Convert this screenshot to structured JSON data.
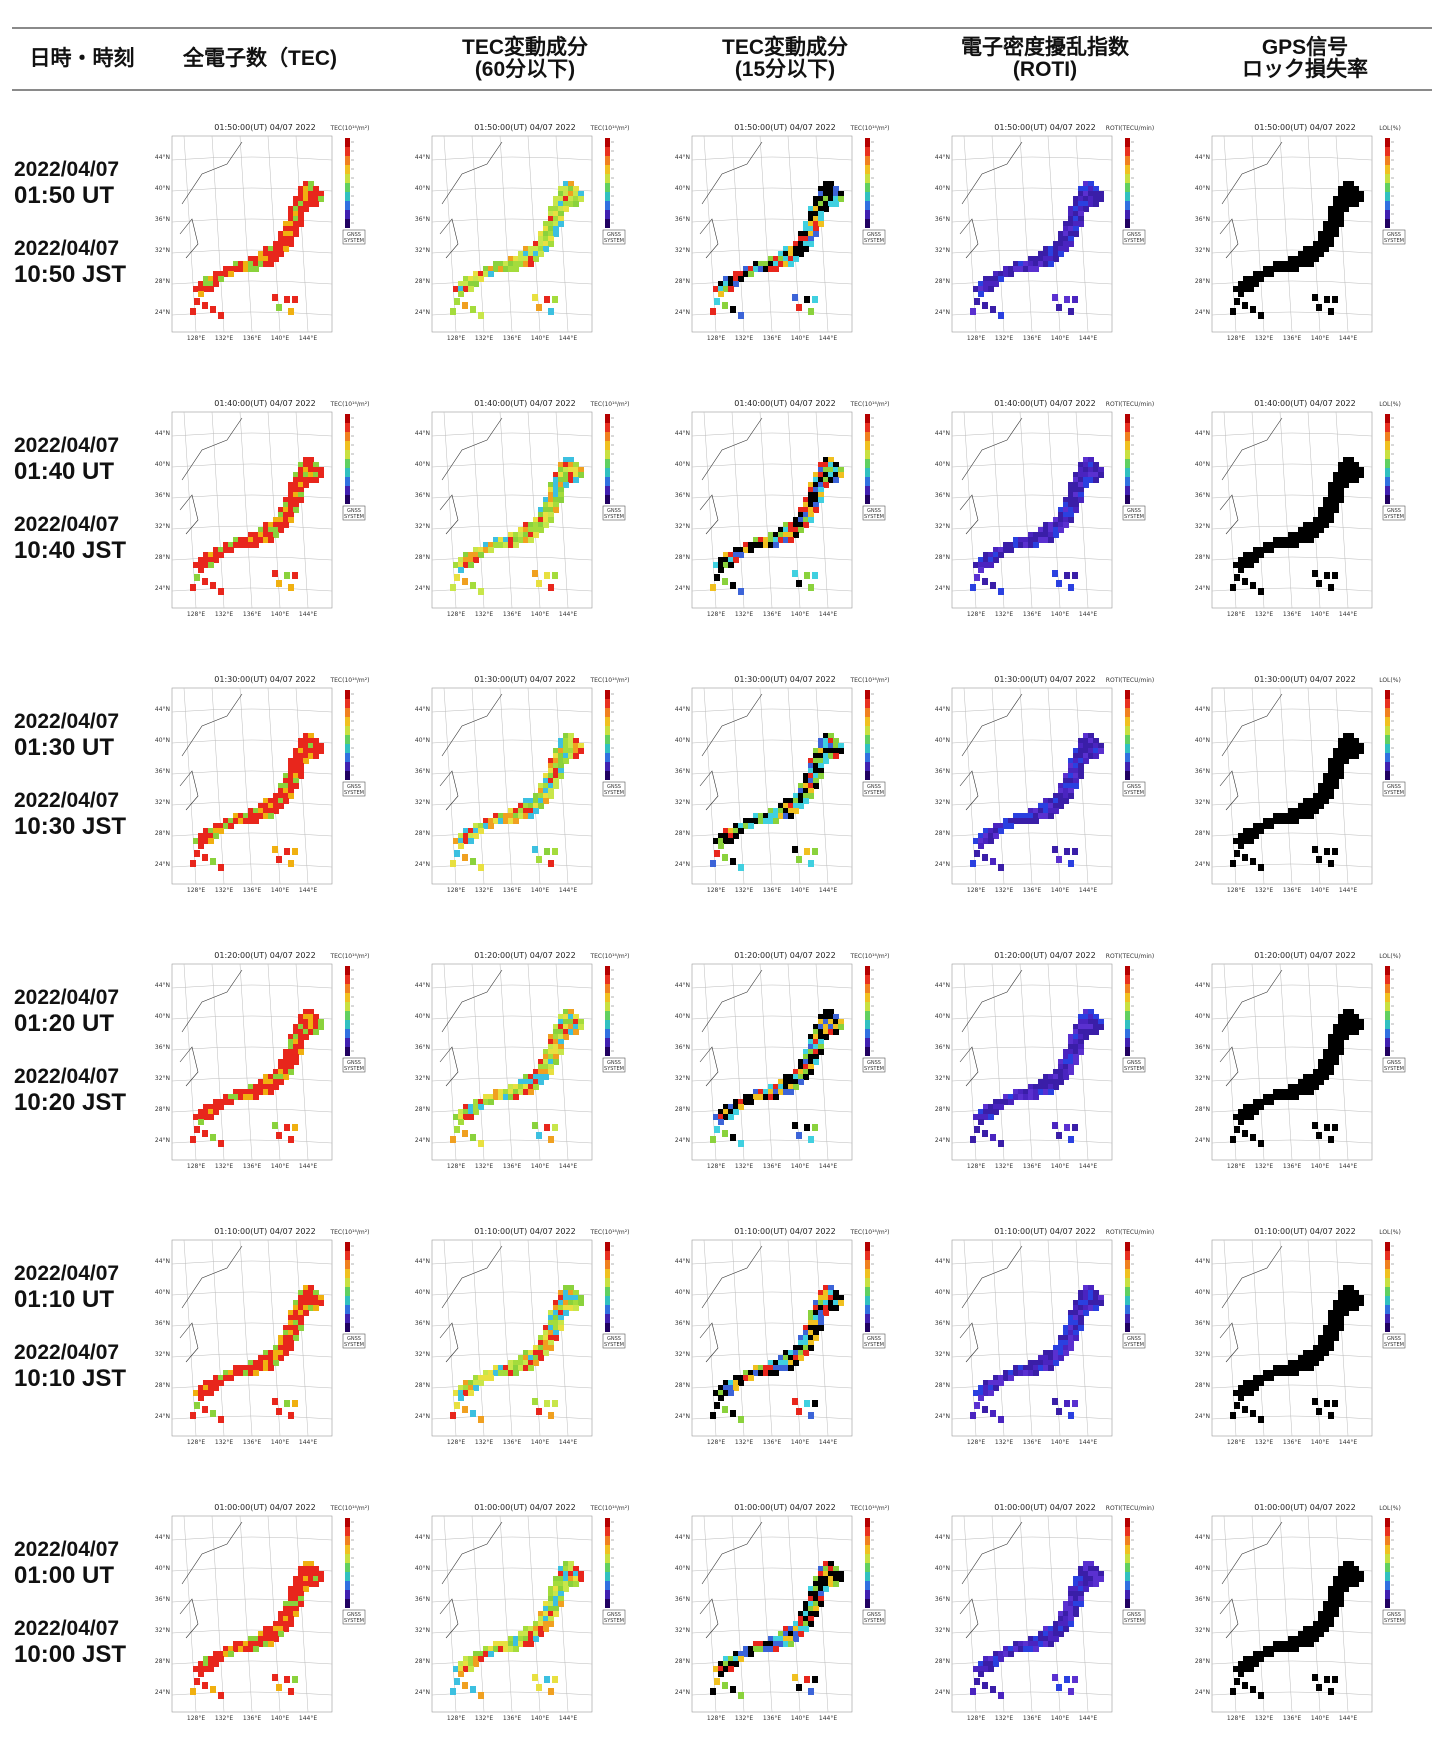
{
  "header": {
    "col1": "日時・時刻",
    "col2": "全電子数（TEC)",
    "col3_line1": "TEC変動成分",
    "col3_line2": "(60分以下)",
    "col4_line1": "TEC変動成分",
    "col4_line2": "(15分以下)",
    "col5_line1": "電子密度擾乱指数",
    "col5_line2": "(ROTI)",
    "col6_line1": "GPS信号",
    "col6_line2": "ロック損失率"
  },
  "rows": [
    {
      "ut_date": "2022/04/07",
      "ut_time": "01:50 UT",
      "jst_date": "2022/04/07",
      "jst_time": "10:50 JST",
      "map_title": "01:50:00(UT) 04/07 2022"
    },
    {
      "ut_date": "2022/04/07",
      "ut_time": "01:40 UT",
      "jst_date": "2022/04/07",
      "jst_time": "10:40 JST",
      "map_title": "01:40:00(UT) 04/07 2022"
    },
    {
      "ut_date": "2022/04/07",
      "ut_time": "01:30 UT",
      "jst_date": "2022/04/07",
      "jst_time": "10:30 JST",
      "map_title": "01:30:00(UT) 04/07 2022"
    },
    {
      "ut_date": "2022/04/07",
      "ut_time": "01:20 UT",
      "jst_date": "2022/04/07",
      "jst_time": "10:20 JST",
      "map_title": "01:20:00(UT) 04/07 2022"
    },
    {
      "ut_date": "2022/04/07",
      "ut_time": "01:10 UT",
      "jst_date": "2022/04/07",
      "jst_time": "10:10 JST",
      "map_title": "01:10:00(UT) 04/07 2022"
    },
    {
      "ut_date": "2022/04/07",
      "ut_time": "01:00 UT",
      "jst_date": "2022/04/07",
      "jst_time": "10:00 JST",
      "map_title": "01:00:00(UT) 04/07 2022"
    }
  ],
  "map_labels": {
    "lat_ticks": [
      "44°N",
      "40°N",
      "36°N",
      "32°N",
      "28°N",
      "24°N"
    ],
    "lon_ticks": [
      "128°E",
      "132°E",
      "136°E",
      "140°E",
      "144°E"
    ],
    "logo_line1": "GNSS",
    "logo_line2": "SYSTEM"
  },
  "panel_types": [
    {
      "key": "tec",
      "colors": [
        "#e8261c",
        "#e8261c",
        "#e8261c",
        "#e8261c",
        "#f0b010",
        "#8ad23c"
      ],
      "scale_unit": "TEC(10¹⁶/m²)"
    },
    {
      "key": "dtec60",
      "colors": [
        "#8ad23c",
        "#a4dc3c",
        "#c8e64a",
        "#e8e040",
        "#f0a020",
        "#e8261c",
        "#3cc0e0"
      ],
      "scale_unit": "TEC(10¹⁶/m²)"
    },
    {
      "key": "dtec15",
      "colors": [
        "#000000",
        "#000000",
        "#000000",
        "#e8261c",
        "#f0c020",
        "#3c64d8",
        "#40d0e0",
        "#8ad23c"
      ],
      "scale_unit": "TEC(10¹⁶/m²)"
    },
    {
      "key": "roti",
      "colors": [
        "#3a1ea8",
        "#4a24c0",
        "#3a1ea8",
        "#5a30d0",
        "#2a40e0"
      ],
      "scale_unit": "ROTI(TECU/min)"
    },
    {
      "key": "loss",
      "colors": [
        "#000000"
      ],
      "scale_unit": "LOL(%)"
    }
  ],
  "colorbar_colors": [
    "#b40000",
    "#e83020",
    "#f08020",
    "#f0c020",
    "#c8e040",
    "#60d060",
    "#30c0c0",
    "#3070e0",
    "#4020b0",
    "#200060"
  ]
}
